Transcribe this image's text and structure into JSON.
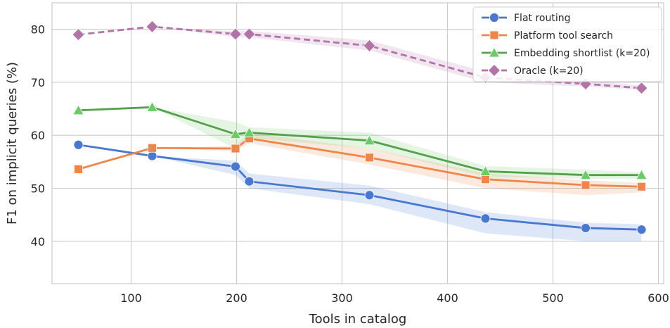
{
  "chart_data": {
    "type": "line",
    "xlabel": "Tools in catalog",
    "ylabel": "F1 on implicit queries (%)",
    "xlim": [
      25,
      605
    ],
    "ylim": [
      32,
      85
    ],
    "xticks": [
      100,
      200,
      300,
      400,
      500,
      600
    ],
    "yticks": [
      40,
      50,
      60,
      70,
      80
    ],
    "grid": true,
    "legend_position": "top-right",
    "series": [
      {
        "name": "Flat routing",
        "color": "#4878d0",
        "marker": "circle",
        "dashed": false,
        "x": [
          50,
          120,
          199,
          212,
          326,
          436,
          531,
          584
        ],
        "y": [
          58.2,
          56.1,
          54.1,
          51.3,
          48.7,
          44.3,
          42.5,
          42.2
        ],
        "band_low": [
          58.2,
          56.1,
          52.5,
          50.0,
          47.0,
          41.5,
          40.0,
          40.0
        ],
        "band_high": [
          58.2,
          56.1,
          55.2,
          52.8,
          50.5,
          45.5,
          43.5,
          43.2
        ]
      },
      {
        "name": "Platform tool search",
        "color": "#ee854a",
        "marker": "square",
        "dashed": false,
        "x": [
          50,
          120,
          199,
          212,
          326,
          436,
          531,
          584
        ],
        "y": [
          53.6,
          57.6,
          57.5,
          59.4,
          55.8,
          51.7,
          50.6,
          50.3
        ],
        "band_low": [
          53.6,
          57.6,
          57.0,
          58.5,
          54.5,
          50.0,
          48.7,
          49.2
        ],
        "band_high": [
          53.6,
          57.6,
          58.0,
          60.5,
          57.5,
          52.8,
          51.5,
          51.0
        ]
      },
      {
        "name": "Embedding shortlist (k=20)",
        "color": "#6acc64",
        "line_color": "#55a04b",
        "marker": "triangle",
        "dashed": false,
        "x": [
          50,
          120,
          199,
          212,
          326,
          436,
          531,
          584
        ],
        "y": [
          64.7,
          65.3,
          60.2,
          60.5,
          59.0,
          53.2,
          52.5,
          52.5
        ],
        "band_low": [
          64.7,
          65.3,
          57.5,
          59.5,
          57.5,
          52.2,
          51.8,
          51.8
        ],
        "band_high": [
          64.7,
          65.3,
          62.5,
          61.5,
          60.5,
          54.2,
          53.5,
          53.0
        ]
      },
      {
        "name": "Oracle (k=20)",
        "color": "#b274a8",
        "line_color": "#b274a8",
        "marker": "diamond",
        "dashed": true,
        "x": [
          50,
          120,
          199,
          212,
          326,
          436,
          531,
          584
        ],
        "y": [
          79.0,
          80.5,
          79.1,
          79.1,
          76.9,
          70.9,
          69.7,
          68.9
        ],
        "band_low": [
          79.0,
          80.5,
          78.5,
          78.5,
          76.0,
          70.0,
          69.2,
          68.6
        ],
        "band_high": [
          79.0,
          80.5,
          79.6,
          79.7,
          77.9,
          72.0,
          70.4,
          69.4
        ]
      }
    ]
  }
}
